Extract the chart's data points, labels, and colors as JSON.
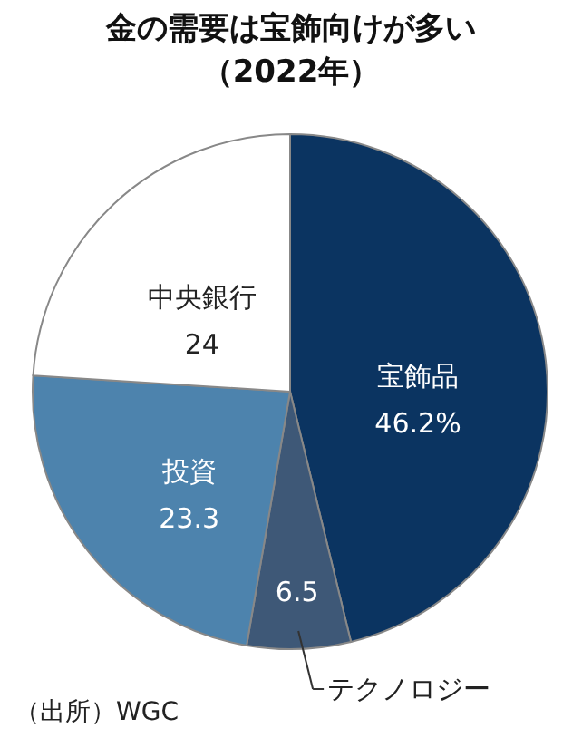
{
  "chart_data": {
    "type": "pie",
    "title": "金の需要は宝飾向けが多い",
    "subtitle": "（2022年）",
    "categories": [
      "宝飾品",
      "テクノロジー",
      "投資",
      "中央銀行"
    ],
    "values": [
      46.2,
      6.5,
      23.3,
      24
    ],
    "value_labels": [
      "46.2%",
      "6.5",
      "23.3",
      "24"
    ],
    "colors": [
      "#0b3461",
      "#3e5877",
      "#4d83ad",
      "#ffffff"
    ],
    "annotations": [
      "（出所）WGC"
    ]
  }
}
